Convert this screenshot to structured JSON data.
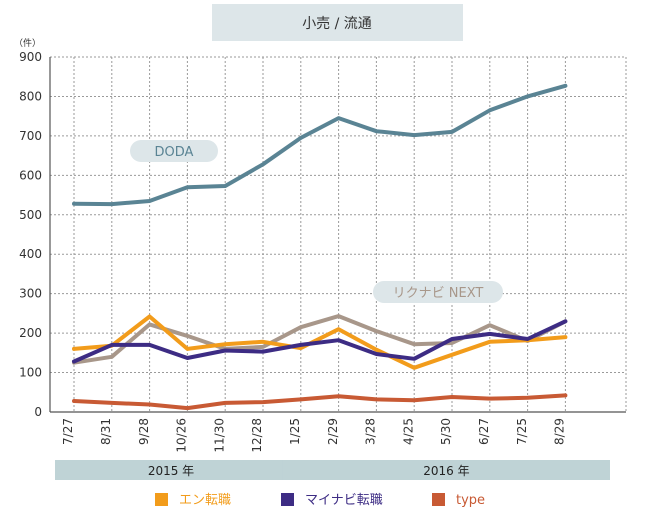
{
  "chart_data": {
    "type": "line",
    "title": "小売 / 流通",
    "unit_label": "（件）",
    "ylim": [
      0,
      900
    ],
    "yticks": [
      0,
      100,
      200,
      300,
      400,
      500,
      600,
      700,
      800,
      900
    ],
    "categories": [
      "7/27",
      "8/31",
      "9/28",
      "10/26",
      "11/30",
      "12/28",
      "1/25",
      "2/29",
      "3/28",
      "4/25",
      "5/30",
      "6/27",
      "7/25",
      "8/29"
    ],
    "year_groups": [
      {
        "label": "2015 年",
        "from": 0,
        "to": 5
      },
      {
        "label": "2016 年",
        "from": 6,
        "to": 13
      }
    ],
    "series": [
      {
        "name": "DODA",
        "color": "#5a8494",
        "values": [
          528,
          527,
          535,
          570,
          573,
          628,
          695,
          745,
          712,
          702,
          710,
          765,
          800,
          827
        ],
        "legend": false,
        "label_box": true
      },
      {
        "name": "リクナビ NEXT",
        "color": "#a8978a",
        "values": [
          125,
          140,
          222,
          193,
          160,
          165,
          215,
          243,
          205,
          172,
          175,
          220,
          180,
          230
        ],
        "legend": false,
        "label_box": true
      },
      {
        "name": "エン転職",
        "color": "#f29c1b",
        "values": [
          160,
          168,
          242,
          160,
          172,
          178,
          162,
          210,
          158,
          112,
          145,
          178,
          182,
          190
        ],
        "legend": true
      },
      {
        "name": "マイナビ転職",
        "color": "#3d2c84",
        "values": [
          128,
          170,
          170,
          137,
          156,
          153,
          170,
          182,
          147,
          135,
          185,
          198,
          185,
          230
        ],
        "legend": true
      },
      {
        "name": "type",
        "color": "#c85a34",
        "values": [
          28,
          23,
          19,
          10,
          23,
          25,
          32,
          40,
          32,
          30,
          38,
          34,
          36,
          42
        ],
        "legend": true
      }
    ],
    "grid": true,
    "legend_position": "bottom"
  }
}
